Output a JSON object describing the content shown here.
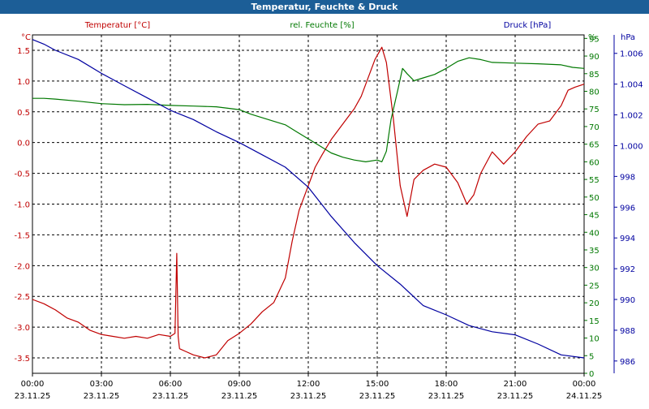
{
  "window": {
    "title": "Temperatur, Feuchte & Druck"
  },
  "colors": {
    "temperature": "#c00000",
    "humidity": "#007800",
    "pressure": "#0000a0",
    "grid": "#000000",
    "titlebar": "#1c5e97"
  },
  "chart_data": {
    "type": "line",
    "title": "Temperatur, Feuchte & Druck",
    "x_ticks": [
      {
        "time": "00:00",
        "date": "23.11.25"
      },
      {
        "time": "03:00",
        "date": "23.11.25"
      },
      {
        "time": "06:00",
        "date": "23.11.25"
      },
      {
        "time": "09:00",
        "date": "23.11.25"
      },
      {
        "time": "12:00",
        "date": "23.11.25"
      },
      {
        "time": "15:00",
        "date": "23.11.25"
      },
      {
        "time": "18:00",
        "date": "23.11.25"
      },
      {
        "time": "21:00",
        "date": "23.11.25"
      },
      {
        "time": "00:00",
        "date": "24.11.25"
      }
    ],
    "x_range_hours": [
      0,
      24
    ],
    "axes": {
      "temperature": {
        "label": "Temperatur [°C]",
        "unit": "°C",
        "ylim": [
          -3.75,
          1.75
        ],
        "ticks": [
          "1.5",
          "1.0",
          "0.5",
          "0.0",
          "-0.5",
          "-1.0",
          "-1.5",
          "-2.0",
          "-2.5",
          "-3.0",
          "-3.5"
        ]
      },
      "humidity": {
        "label": "rel. Feuchte [%]",
        "unit": "%",
        "ylim": [
          0,
          96
        ],
        "ticks": [
          "95",
          "90",
          "85",
          "80",
          "75",
          "70",
          "65",
          "60",
          "55",
          "50",
          "45",
          "40",
          "35",
          "30",
          "25",
          "20",
          "15",
          "10",
          "5",
          "0"
        ]
      },
      "pressure": {
        "label": "Druck [hPa]",
        "unit": "hPa",
        "ylim": [
          985.2,
          1007.2
        ],
        "ticks": [
          "1.006",
          "1.004",
          "1.002",
          "1.000",
          "998",
          "996",
          "994",
          "992",
          "990",
          "988",
          "986"
        ]
      }
    },
    "series": [
      {
        "name": "Temperatur [°C]",
        "axis": "temperature",
        "color": "#c00000",
        "points": [
          [
            0,
            -2.55
          ],
          [
            0.5,
            -2.62
          ],
          [
            1,
            -2.72
          ],
          [
            1.5,
            -2.85
          ],
          [
            2,
            -2.92
          ],
          [
            2.5,
            -3.05
          ],
          [
            3,
            -3.12
          ],
          [
            3.5,
            -3.15
          ],
          [
            4,
            -3.18
          ],
          [
            4.5,
            -3.15
          ],
          [
            5,
            -3.18
          ],
          [
            5.5,
            -3.12
          ],
          [
            6,
            -3.15
          ],
          [
            6.2,
            -3.1
          ],
          [
            6.28,
            -1.8
          ],
          [
            6.34,
            -3.15
          ],
          [
            6.4,
            -3.35
          ],
          [
            6.7,
            -3.4
          ],
          [
            7,
            -3.45
          ],
          [
            7.5,
            -3.5
          ],
          [
            8,
            -3.45
          ],
          [
            8.5,
            -3.22
          ],
          [
            9,
            -3.1
          ],
          [
            9.5,
            -2.95
          ],
          [
            10,
            -2.75
          ],
          [
            10.5,
            -2.6
          ],
          [
            11,
            -2.2
          ],
          [
            11.3,
            -1.6
          ],
          [
            11.6,
            -1.1
          ],
          [
            12,
            -0.7
          ],
          [
            12.3,
            -0.4
          ],
          [
            12.6,
            -0.2
          ],
          [
            13,
            0.05
          ],
          [
            13.3,
            0.2
          ],
          [
            13.6,
            0.35
          ],
          [
            14,
            0.55
          ],
          [
            14.3,
            0.75
          ],
          [
            14.6,
            1.05
          ],
          [
            14.9,
            1.35
          ],
          [
            15.2,
            1.55
          ],
          [
            15.4,
            1.3
          ],
          [
            15.7,
            0.4
          ],
          [
            16,
            -0.7
          ],
          [
            16.3,
            -1.2
          ],
          [
            16.6,
            -0.6
          ],
          [
            17,
            -0.45
          ],
          [
            17.5,
            -0.35
          ],
          [
            18,
            -0.4
          ],
          [
            18.5,
            -0.65
          ],
          [
            18.9,
            -1.0
          ],
          [
            19.2,
            -0.85
          ],
          [
            19.5,
            -0.5
          ],
          [
            20,
            -0.15
          ],
          [
            20.5,
            -0.35
          ],
          [
            21,
            -0.15
          ],
          [
            21.5,
            0.1
          ],
          [
            22,
            0.3
          ],
          [
            22.5,
            0.35
          ],
          [
            23,
            0.6
          ],
          [
            23.3,
            0.85
          ],
          [
            23.6,
            0.9
          ],
          [
            24,
            0.95
          ]
        ]
      },
      {
        "name": "rel. Feuchte [%]",
        "axis": "humidity",
        "color": "#007800",
        "points": [
          [
            0,
            78
          ],
          [
            0.5,
            78
          ],
          [
            1,
            77.8
          ],
          [
            2,
            77.2
          ],
          [
            3,
            76.5
          ],
          [
            4,
            76.2
          ],
          [
            5,
            76.3
          ],
          [
            6,
            76.0
          ],
          [
            7,
            75.8
          ],
          [
            8,
            75.6
          ],
          [
            9,
            74.8
          ],
          [
            9.5,
            73.5
          ],
          [
            10,
            72.5
          ],
          [
            11,
            70.5
          ],
          [
            11.5,
            68.5
          ],
          [
            12,
            66.5
          ],
          [
            12.5,
            64.5
          ],
          [
            13,
            62.5
          ],
          [
            13.5,
            61.3
          ],
          [
            14,
            60.5
          ],
          [
            14.5,
            60.0
          ],
          [
            15,
            60.5
          ],
          [
            15.2,
            60.0
          ],
          [
            15.4,
            63
          ],
          [
            15.6,
            72
          ],
          [
            15.9,
            80.5
          ],
          [
            16.1,
            86.5
          ],
          [
            16.3,
            85
          ],
          [
            16.6,
            83
          ],
          [
            17,
            83.8
          ],
          [
            17.5,
            84.8
          ],
          [
            18,
            86.5
          ],
          [
            18.5,
            88.5
          ],
          [
            19,
            89.5
          ],
          [
            19.5,
            89.0
          ],
          [
            20,
            88.2
          ],
          [
            21,
            88.0
          ],
          [
            22,
            87.8
          ],
          [
            23,
            87.5
          ],
          [
            23.5,
            86.8
          ],
          [
            24,
            86.5
          ]
        ]
      },
      {
        "name": "Druck [hPa]",
        "axis": "pressure",
        "color": "#0000a0",
        "points": [
          [
            0,
            1006.9
          ],
          [
            0.5,
            1006.6
          ],
          [
            1,
            1006.2
          ],
          [
            2,
            1005.6
          ],
          [
            3,
            1004.7
          ],
          [
            4,
            1003.9
          ],
          [
            5,
            1003.1
          ],
          [
            6,
            1002.3
          ],
          [
            7,
            1001.7
          ],
          [
            8,
            1000.9
          ],
          [
            9,
            1000.2
          ],
          [
            10,
            999.4
          ],
          [
            11,
            998.6
          ],
          [
            12,
            997.3
          ],
          [
            13,
            995.4
          ],
          [
            14,
            993.7
          ],
          [
            15,
            992.2
          ],
          [
            16,
            991.0
          ],
          [
            17,
            989.6
          ],
          [
            18,
            989.0
          ],
          [
            19,
            988.3
          ],
          [
            20,
            987.9
          ],
          [
            21,
            987.7
          ],
          [
            22,
            987.1
          ],
          [
            23,
            986.4
          ],
          [
            24,
            986.2
          ]
        ]
      }
    ]
  }
}
